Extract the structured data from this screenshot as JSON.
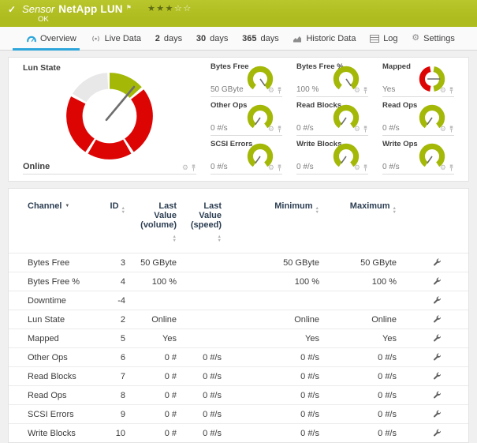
{
  "colors": {
    "brand_green": "#aebc1f",
    "gauge_green": "#a3b807",
    "gauge_red": "#dd0404",
    "gauge_track": "#e8e8e8",
    "needle": "#6e6e6e",
    "tab_active_blue": "#2ea6db"
  },
  "header": {
    "kind_label": "Sensor",
    "title": "NetApp LUN",
    "status": "OK",
    "check_icon": "check-icon",
    "flag_icon": "flag-icon",
    "priority": {
      "filled": 3,
      "total": 5
    }
  },
  "tabs": [
    {
      "icon": "gauge-icon",
      "label": "Overview",
      "active": true
    },
    {
      "icon": "broadcast-icon",
      "label": "Live Data"
    },
    {
      "strong": "2",
      "label": "days"
    },
    {
      "strong": "30",
      "label": "days"
    },
    {
      "strong": "365",
      "label": "days"
    },
    {
      "icon": "chart-icon",
      "label": "Historic Data"
    },
    {
      "icon": "log-icon",
      "label": "Log"
    },
    {
      "icon": "gear-icon",
      "label": "Settings"
    }
  ],
  "overview": {
    "main_gauge": {
      "title": "Lun State",
      "value": "Online",
      "gauge": "donut-state"
    },
    "corner_icons": [
      "gear-icon",
      "pin-icon"
    ],
    "tiles": [
      {
        "title": "Bytes Free",
        "value": "50 GByte",
        "gauge": "arc-max"
      },
      {
        "title": "Bytes Free %",
        "value": "100 %",
        "gauge": "arc-max"
      },
      {
        "title": "Mapped",
        "value": "Yes",
        "gauge": "donut-yes"
      },
      {
        "title": "Other Ops",
        "value": "0 #/s",
        "gauge": "arc-min"
      },
      {
        "title": "Read Blocks",
        "value": "0 #/s",
        "gauge": "arc-min"
      },
      {
        "title": "Read Ops",
        "value": "0 #/s",
        "gauge": "arc-min"
      },
      {
        "title": "SCSI Errors",
        "value": "0 #/s",
        "gauge": "arc-min"
      },
      {
        "title": "Write Blocks",
        "value": "0 #/s",
        "gauge": "arc-min"
      },
      {
        "title": "Write Ops",
        "value": "0 #/s",
        "gauge": "arc-min"
      }
    ]
  },
  "table": {
    "columns": [
      {
        "label": "Channel",
        "sort": "desc"
      },
      {
        "label": "ID",
        "sort": "both"
      },
      {
        "label": "Last Value",
        "sublabel": "(volume)",
        "sort": "both"
      },
      {
        "label": "Last Value",
        "sublabel": "(speed)",
        "sort": "both"
      },
      {
        "label": "Minimum",
        "sort": "both"
      },
      {
        "label": "Maximum",
        "sort": "both"
      }
    ],
    "action_icon": "wrench-icon",
    "rows": [
      [
        "Bytes Free",
        "3",
        "50 GByte",
        "",
        "50 GByte",
        "50 GByte"
      ],
      [
        "Bytes Free %",
        "4",
        "100 %",
        "",
        "100 %",
        "100 %"
      ],
      [
        "Downtime",
        "-4",
        "",
        "",
        "",
        ""
      ],
      [
        "Lun State",
        "2",
        "Online",
        "",
        "Online",
        "Online"
      ],
      [
        "Mapped",
        "5",
        "Yes",
        "",
        "Yes",
        "Yes"
      ],
      [
        "Other Ops",
        "6",
        "0 #",
        "0 #/s",
        "0 #/s",
        "0 #/s"
      ],
      [
        "Read Blocks",
        "7",
        "0 #",
        "0 #/s",
        "0 #/s",
        "0 #/s"
      ],
      [
        "Read Ops",
        "8",
        "0 #",
        "0 #/s",
        "0 #/s",
        "0 #/s"
      ],
      [
        "SCSI Errors",
        "9",
        "0 #",
        "0 #/s",
        "0 #/s",
        "0 #/s"
      ],
      [
        "Write Blocks",
        "10",
        "0 #",
        "0 #/s",
        "0 #/s",
        "0 #/s"
      ]
    ]
  }
}
